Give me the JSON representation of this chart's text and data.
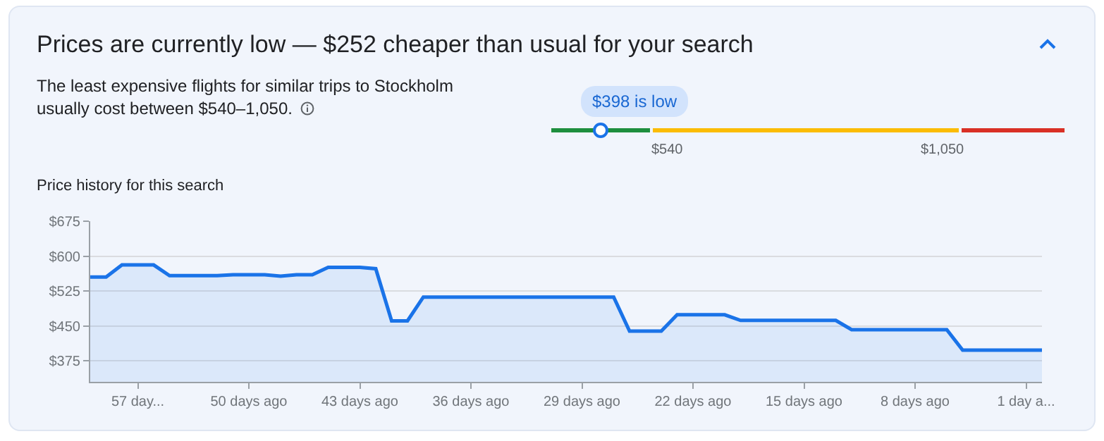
{
  "chart_data": [
    {
      "type": "other",
      "title": "Prices are currently low — $252 cheaper than usual for your search",
      "subtitle": "The least expensive flights for similar trips to Stockholm usually cost between $540–1,050.",
      "annotations": [
        "$398 is low",
        "$540",
        "$1,050"
      ]
    },
    {
      "type": "area",
      "title": "Price history for this search",
      "color": "#1a73e8",
      "x": [
        -60,
        -59,
        -58,
        -57,
        -56,
        -55,
        -54,
        -53,
        -52,
        -51,
        -50,
        -49,
        -48,
        -47,
        -46,
        -45,
        -44,
        -43,
        -42,
        -41,
        -40,
        -39,
        -38,
        -37,
        -36,
        -35,
        -34,
        -33,
        -32,
        -31,
        -30,
        -29,
        -28,
        -27,
        -26,
        -25,
        -24,
        -23,
        -22,
        -21,
        -20,
        -19,
        -18,
        -17,
        -16,
        -15,
        -14,
        -13,
        -12,
        -11,
        -10,
        -9,
        -8,
        -7,
        -6,
        -5,
        -4,
        -3,
        -2,
        -1,
        0
      ],
      "values": [
        555,
        555,
        581,
        581,
        581,
        558,
        558,
        558,
        558,
        560,
        560,
        560,
        557,
        560,
        560,
        576,
        576,
        576,
        573,
        461,
        461,
        512,
        512,
        512,
        512,
        512,
        512,
        512,
        512,
        512,
        512,
        512,
        512,
        512,
        439,
        439,
        439,
        474,
        474,
        474,
        474,
        462,
        462,
        462,
        462,
        462,
        462,
        462,
        442,
        442,
        442,
        442,
        442,
        442,
        442,
        398,
        398,
        398,
        398,
        398,
        398
      ],
      "xlim": [
        -60,
        0
      ],
      "xticks": [
        {
          "value": -57,
          "label": "57 day..."
        },
        {
          "value": -50,
          "label": "50 days ago"
        },
        {
          "value": -43,
          "label": "43 days ago"
        },
        {
          "value": -36,
          "label": "36 days ago"
        },
        {
          "value": -29,
          "label": "29 days ago"
        },
        {
          "value": -22,
          "label": "22 days ago"
        },
        {
          "value": -15,
          "label": "15 days ago"
        },
        {
          "value": -8,
          "label": "8 days ago"
        },
        {
          "value": -1,
          "label": "1 day a..."
        }
      ],
      "ylim": [
        330,
        675
      ],
      "yticks": [
        {
          "value": 375,
          "label": "$375"
        },
        {
          "value": 450,
          "label": "$450"
        },
        {
          "value": 525,
          "label": "$525"
        },
        {
          "value": 600,
          "label": "$600"
        },
        {
          "value": 675,
          "label": "$675"
        }
      ],
      "grid": "y",
      "legend": false
    }
  ]
}
